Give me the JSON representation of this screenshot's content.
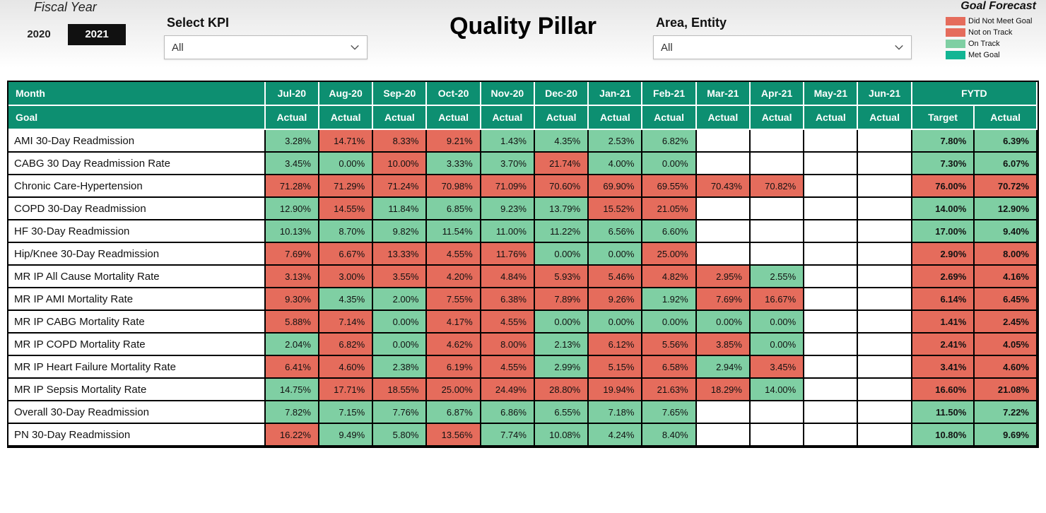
{
  "colors": {
    "c_red": "#e56c5c",
    "c_green": "#7fcfa3",
    "c_teal": "#12b594",
    "c_headerTeal": "#0d8f71",
    "c_white": "#ffffff"
  },
  "header": {
    "fiscal_label": "Fiscal Year",
    "fy_options": [
      "2020",
      "2021"
    ],
    "fy_selected_index": 1,
    "kpi_label": "Select KPI",
    "kpi_value": "All",
    "title": "Quality Pillar",
    "area_label": "Area, Entity",
    "area_value": "All",
    "legend_title": "Goal Forecast",
    "legend": [
      {
        "label": "Did Not Meet Goal",
        "color": "c_red"
      },
      {
        "label": "Not on Track",
        "color": "c_red"
      },
      {
        "label": "On Track",
        "color": "c_green"
      },
      {
        "label": "Met Goal",
        "color": "c_teal"
      }
    ]
  },
  "table": {
    "row1_label": "Month",
    "row2_label": "Goal",
    "months": [
      "Jul-20",
      "Aug-20",
      "Sep-20",
      "Oct-20",
      "Nov-20",
      "Dec-20",
      "Jan-21",
      "Feb-21",
      "Mar-21",
      "Apr-21",
      "May-21",
      "Jun-21"
    ],
    "sub_header": "Actual",
    "fytd_label": "FYTD",
    "fytd_target_label": "Target",
    "fytd_actual_label": "Actual",
    "rows": [
      {
        "kpi": "AMI 30-Day Readmission",
        "cells": [
          {
            "v": "3.28%",
            "c": "c_green"
          },
          {
            "v": "14.71%",
            "c": "c_red"
          },
          {
            "v": "8.33%",
            "c": "c_red"
          },
          {
            "v": "9.21%",
            "c": "c_red"
          },
          {
            "v": "1.43%",
            "c": "c_green"
          },
          {
            "v": "4.35%",
            "c": "c_green"
          },
          {
            "v": "2.53%",
            "c": "c_green"
          },
          {
            "v": "6.82%",
            "c": "c_green"
          },
          null,
          null,
          null,
          null
        ],
        "fytd_target": {
          "v": "7.80%",
          "c": "c_green"
        },
        "fytd_actual": {
          "v": "6.39%",
          "c": "c_green"
        }
      },
      {
        "kpi": "CABG 30 Day Readmission Rate",
        "cells": [
          {
            "v": "3.45%",
            "c": "c_green"
          },
          {
            "v": "0.00%",
            "c": "c_green"
          },
          {
            "v": "10.00%",
            "c": "c_red"
          },
          {
            "v": "3.33%",
            "c": "c_green"
          },
          {
            "v": "3.70%",
            "c": "c_green"
          },
          {
            "v": "21.74%",
            "c": "c_red"
          },
          {
            "v": "4.00%",
            "c": "c_green"
          },
          {
            "v": "0.00%",
            "c": "c_green"
          },
          null,
          null,
          null,
          null
        ],
        "fytd_target": {
          "v": "7.30%",
          "c": "c_green"
        },
        "fytd_actual": {
          "v": "6.07%",
          "c": "c_green"
        }
      },
      {
        "kpi": "Chronic Care-Hypertension",
        "cells": [
          {
            "v": "71.28%",
            "c": "c_red"
          },
          {
            "v": "71.29%",
            "c": "c_red"
          },
          {
            "v": "71.24%",
            "c": "c_red"
          },
          {
            "v": "70.98%",
            "c": "c_red"
          },
          {
            "v": "71.09%",
            "c": "c_red"
          },
          {
            "v": "70.60%",
            "c": "c_red"
          },
          {
            "v": "69.90%",
            "c": "c_red"
          },
          {
            "v": "69.55%",
            "c": "c_red"
          },
          {
            "v": "70.43%",
            "c": "c_red"
          },
          {
            "v": "70.82%",
            "c": "c_red"
          },
          null,
          null
        ],
        "fytd_target": {
          "v": "76.00%",
          "c": "c_red"
        },
        "fytd_actual": {
          "v": "70.72%",
          "c": "c_red"
        }
      },
      {
        "kpi": "COPD 30-Day Readmission",
        "cells": [
          {
            "v": "12.90%",
            "c": "c_green"
          },
          {
            "v": "14.55%",
            "c": "c_red"
          },
          {
            "v": "11.84%",
            "c": "c_green"
          },
          {
            "v": "6.85%",
            "c": "c_green"
          },
          {
            "v": "9.23%",
            "c": "c_green"
          },
          {
            "v": "13.79%",
            "c": "c_green"
          },
          {
            "v": "15.52%",
            "c": "c_red"
          },
          {
            "v": "21.05%",
            "c": "c_red"
          },
          null,
          null,
          null,
          null
        ],
        "fytd_target": {
          "v": "14.00%",
          "c": "c_green"
        },
        "fytd_actual": {
          "v": "12.90%",
          "c": "c_green"
        }
      },
      {
        "kpi": "HF 30-Day Readmission",
        "cells": [
          {
            "v": "10.13%",
            "c": "c_green"
          },
          {
            "v": "8.70%",
            "c": "c_green"
          },
          {
            "v": "9.82%",
            "c": "c_green"
          },
          {
            "v": "11.54%",
            "c": "c_green"
          },
          {
            "v": "11.00%",
            "c": "c_green"
          },
          {
            "v": "11.22%",
            "c": "c_green"
          },
          {
            "v": "6.56%",
            "c": "c_green"
          },
          {
            "v": "6.60%",
            "c": "c_green"
          },
          null,
          null,
          null,
          null
        ],
        "fytd_target": {
          "v": "17.00%",
          "c": "c_green"
        },
        "fytd_actual": {
          "v": "9.40%",
          "c": "c_green"
        }
      },
      {
        "kpi": "Hip/Knee 30-Day Readmission",
        "cells": [
          {
            "v": "7.69%",
            "c": "c_red"
          },
          {
            "v": "6.67%",
            "c": "c_red"
          },
          {
            "v": "13.33%",
            "c": "c_red"
          },
          {
            "v": "4.55%",
            "c": "c_red"
          },
          {
            "v": "11.76%",
            "c": "c_red"
          },
          {
            "v": "0.00%",
            "c": "c_green"
          },
          {
            "v": "0.00%",
            "c": "c_green"
          },
          {
            "v": "25.00%",
            "c": "c_red"
          },
          null,
          null,
          null,
          null
        ],
        "fytd_target": {
          "v": "2.90%",
          "c": "c_red"
        },
        "fytd_actual": {
          "v": "8.00%",
          "c": "c_red"
        }
      },
      {
        "kpi": "MR IP All Cause Mortality Rate",
        "cells": [
          {
            "v": "3.13%",
            "c": "c_red"
          },
          {
            "v": "3.00%",
            "c": "c_red"
          },
          {
            "v": "3.55%",
            "c": "c_red"
          },
          {
            "v": "4.20%",
            "c": "c_red"
          },
          {
            "v": "4.84%",
            "c": "c_red"
          },
          {
            "v": "5.93%",
            "c": "c_red"
          },
          {
            "v": "5.46%",
            "c": "c_red"
          },
          {
            "v": "4.82%",
            "c": "c_red"
          },
          {
            "v": "2.95%",
            "c": "c_red"
          },
          {
            "v": "2.55%",
            "c": "c_green"
          },
          null,
          null
        ],
        "fytd_target": {
          "v": "2.69%",
          "c": "c_red"
        },
        "fytd_actual": {
          "v": "4.16%",
          "c": "c_red"
        }
      },
      {
        "kpi": "MR IP AMI Mortality Rate",
        "cells": [
          {
            "v": "9.30%",
            "c": "c_red"
          },
          {
            "v": "4.35%",
            "c": "c_green"
          },
          {
            "v": "2.00%",
            "c": "c_green"
          },
          {
            "v": "7.55%",
            "c": "c_red"
          },
          {
            "v": "6.38%",
            "c": "c_red"
          },
          {
            "v": "7.89%",
            "c": "c_red"
          },
          {
            "v": "9.26%",
            "c": "c_red"
          },
          {
            "v": "1.92%",
            "c": "c_green"
          },
          {
            "v": "7.69%",
            "c": "c_red"
          },
          {
            "v": "16.67%",
            "c": "c_red"
          },
          null,
          null
        ],
        "fytd_target": {
          "v": "6.14%",
          "c": "c_red"
        },
        "fytd_actual": {
          "v": "6.45%",
          "c": "c_red"
        }
      },
      {
        "kpi": "MR IP CABG Mortality Rate",
        "cells": [
          {
            "v": "5.88%",
            "c": "c_red"
          },
          {
            "v": "7.14%",
            "c": "c_red"
          },
          {
            "v": "0.00%",
            "c": "c_green"
          },
          {
            "v": "4.17%",
            "c": "c_red"
          },
          {
            "v": "4.55%",
            "c": "c_red"
          },
          {
            "v": "0.00%",
            "c": "c_green"
          },
          {
            "v": "0.00%",
            "c": "c_green"
          },
          {
            "v": "0.00%",
            "c": "c_green"
          },
          {
            "v": "0.00%",
            "c": "c_green"
          },
          {
            "v": "0.00%",
            "c": "c_green"
          },
          null,
          null
        ],
        "fytd_target": {
          "v": "1.41%",
          "c": "c_red"
        },
        "fytd_actual": {
          "v": "2.45%",
          "c": "c_red"
        }
      },
      {
        "kpi": "MR IP COPD Mortality Rate",
        "cells": [
          {
            "v": "2.04%",
            "c": "c_green"
          },
          {
            "v": "6.82%",
            "c": "c_red"
          },
          {
            "v": "0.00%",
            "c": "c_green"
          },
          {
            "v": "4.62%",
            "c": "c_red"
          },
          {
            "v": "8.00%",
            "c": "c_red"
          },
          {
            "v": "2.13%",
            "c": "c_green"
          },
          {
            "v": "6.12%",
            "c": "c_red"
          },
          {
            "v": "5.56%",
            "c": "c_red"
          },
          {
            "v": "3.85%",
            "c": "c_red"
          },
          {
            "v": "0.00%",
            "c": "c_green"
          },
          null,
          null
        ],
        "fytd_target": {
          "v": "2.41%",
          "c": "c_red"
        },
        "fytd_actual": {
          "v": "4.05%",
          "c": "c_red"
        }
      },
      {
        "kpi": "MR IP Heart Failure Mortality Rate",
        "cells": [
          {
            "v": "6.41%",
            "c": "c_red"
          },
          {
            "v": "4.60%",
            "c": "c_red"
          },
          {
            "v": "2.38%",
            "c": "c_green"
          },
          {
            "v": "6.19%",
            "c": "c_red"
          },
          {
            "v": "4.55%",
            "c": "c_red"
          },
          {
            "v": "2.99%",
            "c": "c_green"
          },
          {
            "v": "5.15%",
            "c": "c_red"
          },
          {
            "v": "6.58%",
            "c": "c_red"
          },
          {
            "v": "2.94%",
            "c": "c_green"
          },
          {
            "v": "3.45%",
            "c": "c_red"
          },
          null,
          null
        ],
        "fytd_target": {
          "v": "3.41%",
          "c": "c_red"
        },
        "fytd_actual": {
          "v": "4.60%",
          "c": "c_red"
        }
      },
      {
        "kpi": "MR IP Sepsis Mortality Rate",
        "cells": [
          {
            "v": "14.75%",
            "c": "c_green"
          },
          {
            "v": "17.71%",
            "c": "c_red"
          },
          {
            "v": "18.55%",
            "c": "c_red"
          },
          {
            "v": "25.00%",
            "c": "c_red"
          },
          {
            "v": "24.49%",
            "c": "c_red"
          },
          {
            "v": "28.80%",
            "c": "c_red"
          },
          {
            "v": "19.94%",
            "c": "c_red"
          },
          {
            "v": "21.63%",
            "c": "c_red"
          },
          {
            "v": "18.29%",
            "c": "c_red"
          },
          {
            "v": "14.00%",
            "c": "c_green"
          },
          null,
          null
        ],
        "fytd_target": {
          "v": "16.60%",
          "c": "c_red"
        },
        "fytd_actual": {
          "v": "21.08%",
          "c": "c_red"
        }
      },
      {
        "kpi": "Overall 30-Day Readmission",
        "cells": [
          {
            "v": "7.82%",
            "c": "c_green"
          },
          {
            "v": "7.15%",
            "c": "c_green"
          },
          {
            "v": "7.76%",
            "c": "c_green"
          },
          {
            "v": "6.87%",
            "c": "c_green"
          },
          {
            "v": "6.86%",
            "c": "c_green"
          },
          {
            "v": "6.55%",
            "c": "c_green"
          },
          {
            "v": "7.18%",
            "c": "c_green"
          },
          {
            "v": "7.65%",
            "c": "c_green"
          },
          null,
          null,
          null,
          null
        ],
        "fytd_target": {
          "v": "11.50%",
          "c": "c_green"
        },
        "fytd_actual": {
          "v": "7.22%",
          "c": "c_green"
        }
      },
      {
        "kpi": "PN 30-Day Readmission",
        "cells": [
          {
            "v": "16.22%",
            "c": "c_red"
          },
          {
            "v": "9.49%",
            "c": "c_green"
          },
          {
            "v": "5.80%",
            "c": "c_green"
          },
          {
            "v": "13.56%",
            "c": "c_red"
          },
          {
            "v": "7.74%",
            "c": "c_green"
          },
          {
            "v": "10.08%",
            "c": "c_green"
          },
          {
            "v": "4.24%",
            "c": "c_green"
          },
          {
            "v": "8.40%",
            "c": "c_green"
          },
          null,
          null,
          null,
          null
        ],
        "fytd_target": {
          "v": "10.80%",
          "c": "c_green"
        },
        "fytd_actual": {
          "v": "9.69%",
          "c": "c_green"
        }
      }
    ]
  }
}
